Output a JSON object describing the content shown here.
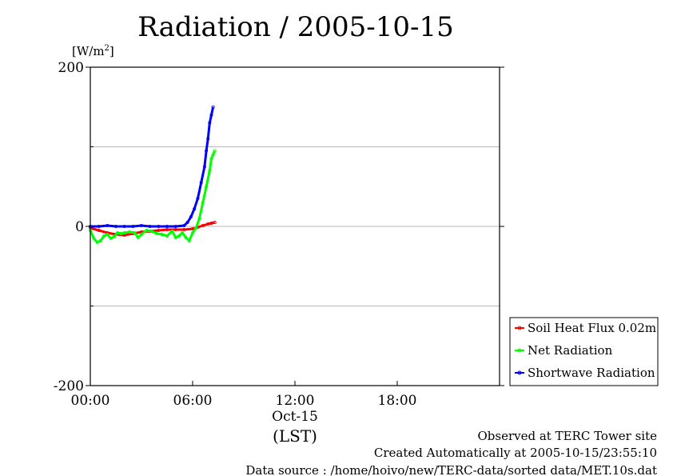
{
  "chart_data": {
    "type": "line",
    "title": "Radiation / 2005-10-15",
    "ylabel_unit": "[W/m",
    "ylabel_sup": "2",
    "ylabel_close": "]",
    "ylim": [
      -200,
      200
    ],
    "y_ticks": [
      {
        "value": 200,
        "label": "200"
      },
      {
        "value": 0,
        "label": "0"
      },
      {
        "value": -200,
        "label": "-200"
      }
    ],
    "y_gridlines": [
      100,
      0,
      -100
    ],
    "xlim": [
      0,
      24
    ],
    "x_ticks": [
      {
        "value": 0,
        "label": "00:00"
      },
      {
        "value": 12,
        "label": "12:00"
      },
      {
        "value": 18,
        "label": "18:00"
      }
    ],
    "x_date_label": "Oct-15",
    "x_axis_label": "(LST)",
    "legend_position": "lower-right",
    "series": [
      {
        "name": "Soil Heat Flux 0.02m",
        "color": "#ff0000",
        "x": [
          0,
          0.5,
          1.0,
          1.5,
          2.0,
          2.5,
          3.0,
          3.5,
          4.0,
          4.5,
          5.0,
          5.5,
          6.0,
          6.3,
          6.6,
          6.9,
          7.1,
          7.3
        ],
        "y": [
          -2,
          -5,
          -8,
          -10,
          -11,
          -9,
          -7,
          -6,
          -5,
          -4,
          -4,
          -4,
          -3,
          -1,
          1,
          3,
          4,
          5
        ]
      },
      {
        "name": "Net Radiation",
        "color": "#00ff00",
        "x": [
          0,
          0.2,
          0.4,
          0.6,
          0.8,
          1.0,
          1.2,
          1.4,
          1.6,
          1.8,
          2.0,
          2.3,
          2.6,
          2.8,
          3.0,
          3.3,
          3.6,
          3.9,
          4.2,
          4.5,
          4.8,
          5.0,
          5.2,
          5.4,
          5.6,
          5.8,
          6.0,
          6.2,
          6.4,
          6.6,
          6.8,
          7.0,
          7.1,
          7.2,
          7.3
        ],
        "y": [
          -5,
          -15,
          -20,
          -18,
          -12,
          -10,
          -15,
          -13,
          -8,
          -9,
          -8,
          -7,
          -8,
          -14,
          -10,
          -5,
          -6,
          -9,
          -10,
          -12,
          -6,
          -14,
          -12,
          -8,
          -14,
          -18,
          -8,
          -2,
          10,
          30,
          50,
          70,
          85,
          90,
          95
        ]
      },
      {
        "name": "Shortwave Radiation",
        "color": "#0000ff",
        "x": [
          0,
          0.5,
          1.0,
          1.5,
          2.0,
          2.5,
          3.0,
          3.5,
          4.0,
          4.5,
          5.0,
          5.5,
          5.7,
          5.9,
          6.1,
          6.3,
          6.5,
          6.7,
          6.8,
          6.9,
          7.0,
          7.1,
          7.2
        ],
        "y": [
          0,
          0,
          1,
          0,
          0,
          0,
          1,
          0,
          0,
          0,
          0,
          1,
          5,
          12,
          22,
          35,
          55,
          75,
          95,
          110,
          130,
          140,
          150
        ]
      }
    ]
  },
  "footer": {
    "line1": "Observed at TERC Tower site",
    "line2": "Created Automatically at 2005-10-15/23:55:10",
    "line3": "Data source : /home/hoivo/new/TERC-data/sorted  data/MET.10s.dat"
  }
}
